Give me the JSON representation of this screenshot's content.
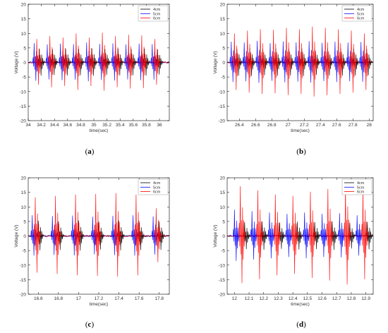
{
  "panels": [
    {
      "id": "a",
      "caption_open": "(",
      "caption_label": "a",
      "caption_close": ")",
      "chart_data": {
        "type": "line",
        "xlabel": "time(sec)",
        "ylabel": "Voltage (V)",
        "xlim": [
          34.0,
          36.15
        ],
        "ylim": [
          -20,
          20
        ],
        "xticks": [
          "34",
          "34.2",
          "34.4",
          "34.6",
          "34.8",
          "35",
          "35.2",
          "35.4",
          "35.6",
          "35.8",
          "36"
        ],
        "yticks": [
          "-20",
          "-15",
          "-10",
          "-5",
          "0",
          "5",
          "10",
          "15",
          "20"
        ],
        "grid": false,
        "legend_position": "top-right",
        "pulse_period": 0.2,
        "series": [
          {
            "name": "4cm",
            "color": "#000000",
            "pulses": [
              {
                "t": 34.17,
                "amp": 5.0
              },
              {
                "t": 34.37,
                "amp": 4.8
              },
              {
                "t": 34.57,
                "amp": 5.0
              },
              {
                "t": 34.77,
                "amp": 4.9
              },
              {
                "t": 34.97,
                "amp": 5.1
              },
              {
                "t": 35.17,
                "amp": 4.8
              },
              {
                "t": 35.37,
                "amp": 5.0
              },
              {
                "t": 35.57,
                "amp": 4.9
              },
              {
                "t": 35.77,
                "amp": 5.0
              },
              {
                "t": 35.97,
                "amp": 4.7
              }
            ]
          },
          {
            "name": "5cm",
            "color": "#0000ff",
            "pulses": [
              {
                "t": 34.09,
                "amp": 7.0
              },
              {
                "t": 34.29,
                "amp": 6.5
              },
              {
                "t": 34.49,
                "amp": 6.8
              },
              {
                "t": 34.69,
                "amp": 6.6
              },
              {
                "t": 34.89,
                "amp": 7.2
              },
              {
                "t": 35.09,
                "amp": 6.7
              },
              {
                "t": 35.29,
                "amp": 6.9
              },
              {
                "t": 35.49,
                "amp": 6.5
              },
              {
                "t": 35.69,
                "amp": 6.8
              },
              {
                "t": 35.89,
                "amp": 6.6
              }
            ]
          },
          {
            "name": "6cm",
            "color": "#ff0000",
            "pulses": [
              {
                "t": 34.13,
                "amp": 8.5
              },
              {
                "t": 34.33,
                "amp": 9.5
              },
              {
                "t": 34.53,
                "amp": 9.0
              },
              {
                "t": 34.73,
                "amp": 10.5
              },
              {
                "t": 34.93,
                "amp": 9.0
              },
              {
                "t": 35.13,
                "amp": 10.8
              },
              {
                "t": 35.33,
                "amp": 9.5
              },
              {
                "t": 35.53,
                "amp": 10.0
              },
              {
                "t": 35.73,
                "amp": 9.8
              },
              {
                "t": 35.93,
                "amp": 8.5
              }
            ]
          }
        ]
      }
    },
    {
      "id": "b",
      "caption_open": "(",
      "caption_label": "b",
      "caption_close": ")",
      "chart_data": {
        "type": "line",
        "xlabel": "time(sec)",
        "ylabel": "Voltage (V)",
        "xlim": [
          26.25,
          28.05
        ],
        "ylim": [
          -20,
          20
        ],
        "xticks": [
          "26.4",
          "26.6",
          "26.8",
          "27",
          "27.2",
          "27.4",
          "27.6",
          "27.8",
          "28"
        ],
        "yticks": [
          "-20",
          "-15",
          "-10",
          "-5",
          "0",
          "5",
          "10",
          "15",
          "20"
        ],
        "grid": false,
        "legend_position": "top-right",
        "pulse_period": 0.16,
        "series": [
          {
            "name": "4cm",
            "color": "#000000",
            "pulses": [
              {
                "t": 26.37,
                "amp": 5.0
              },
              {
                "t": 26.53,
                "amp": 5.2
              },
              {
                "t": 26.69,
                "amp": 4.9
              },
              {
                "t": 26.85,
                "amp": 5.1
              },
              {
                "t": 27.01,
                "amp": 5.0
              },
              {
                "t": 27.17,
                "amp": 5.2
              },
              {
                "t": 27.33,
                "amp": 4.8
              },
              {
                "t": 27.49,
                "amp": 5.0
              },
              {
                "t": 27.65,
                "amp": 5.1
              },
              {
                "t": 27.81,
                "amp": 5.0
              },
              {
                "t": 27.97,
                "amp": 4.9
              }
            ]
          },
          {
            "name": "5cm",
            "color": "#0000ff",
            "pulses": [
              {
                "t": 26.3,
                "amp": 7.5
              },
              {
                "t": 26.46,
                "amp": 7.2
              },
              {
                "t": 26.62,
                "amp": 7.8
              },
              {
                "t": 26.78,
                "amp": 7.0
              },
              {
                "t": 26.94,
                "amp": 7.6
              },
              {
                "t": 27.1,
                "amp": 7.3
              },
              {
                "t": 27.26,
                "amp": 7.7
              },
              {
                "t": 27.42,
                "amp": 7.1
              },
              {
                "t": 27.58,
                "amp": 7.5
              },
              {
                "t": 27.74,
                "amp": 7.2
              },
              {
                "t": 27.9,
                "amp": 7.4
              }
            ]
          },
          {
            "name": "6cm",
            "color": "#ff0000",
            "pulses": [
              {
                "t": 26.34,
                "amp": 10.5
              },
              {
                "t": 26.5,
                "amp": 11.5
              },
              {
                "t": 26.66,
                "amp": 12.0
              },
              {
                "t": 26.82,
                "amp": 11.8
              },
              {
                "t": 26.98,
                "amp": 12.5
              },
              {
                "t": 27.14,
                "amp": 12.0
              },
              {
                "t": 27.3,
                "amp": 13.0
              },
              {
                "t": 27.46,
                "amp": 12.5
              },
              {
                "t": 27.62,
                "amp": 12.0
              },
              {
                "t": 27.78,
                "amp": 11.5
              },
              {
                "t": 27.94,
                "amp": 10.5
              }
            ]
          }
        ]
      }
    },
    {
      "id": "c",
      "caption_open": "(",
      "caption_label": "c",
      "caption_close": ")",
      "chart_data": {
        "type": "line",
        "xlabel": "time(sec)",
        "ylabel": "Voltage (V)",
        "xlim": [
          16.5,
          17.9
        ],
        "ylim": [
          -20,
          20
        ],
        "xticks": [
          "16.6",
          "16.8",
          "17",
          "17.2",
          "17.4",
          "17.6",
          "17.8"
        ],
        "yticks": [
          "-20",
          "-15",
          "-10",
          "-5",
          "0",
          "5",
          "10",
          "15",
          "20"
        ],
        "grid": false,
        "legend_position": "top-right",
        "pulse_period": 0.2,
        "series": [
          {
            "name": "4cm",
            "color": "#000000",
            "pulses": [
              {
                "t": 16.6,
                "amp": 5.5
              },
              {
                "t": 16.8,
                "amp": 5.3
              },
              {
                "t": 17.0,
                "amp": 5.6
              },
              {
                "t": 17.2,
                "amp": 5.2
              },
              {
                "t": 17.4,
                "amp": 5.5
              },
              {
                "t": 17.6,
                "amp": 5.4
              },
              {
                "t": 17.8,
                "amp": 5.3
              }
            ]
          },
          {
            "name": "5cm",
            "color": "#0000ff",
            "pulses": [
              {
                "t": 16.54,
                "amp": 7.5
              },
              {
                "t": 16.74,
                "amp": 7.2
              },
              {
                "t": 16.94,
                "amp": 7.4
              },
              {
                "t": 17.14,
                "amp": 7.0
              },
              {
                "t": 17.34,
                "amp": 7.3
              },
              {
                "t": 17.54,
                "amp": 7.5
              },
              {
                "t": 17.74,
                "amp": 7.1
              }
            ]
          },
          {
            "name": "6cm",
            "color": "#ff0000",
            "pulses": [
              {
                "t": 16.57,
                "amp": 14.0
              },
              {
                "t": 16.77,
                "amp": 14.5
              },
              {
                "t": 16.97,
                "amp": 15.0
              },
              {
                "t": 17.17,
                "amp": 15.2
              },
              {
                "t": 17.37,
                "amp": 15.5
              },
              {
                "t": 17.57,
                "amp": 15.0
              },
              {
                "t": 17.77,
                "amp": 10.0
              }
            ]
          }
        ]
      }
    },
    {
      "id": "d",
      "caption_open": "(",
      "caption_label": "d",
      "caption_close": ")",
      "chart_data": {
        "type": "line",
        "xlabel": "time(sec)",
        "ylabel": "Voltage (V)",
        "xlim": [
          11.95,
          12.95
        ],
        "ylim": [
          -20,
          20
        ],
        "xticks": [
          "12",
          "12.1",
          "12.2",
          "12.3",
          "12.4",
          "12.5",
          "12.6",
          "12.7",
          "12.8",
          "12.9"
        ],
        "yticks": [
          "-20",
          "-15",
          "-10",
          "-5",
          "0",
          "5",
          "10",
          "15",
          "20"
        ],
        "grid": false,
        "legend_position": "top-right",
        "pulse_period": 0.12,
        "series": [
          {
            "name": "4cm",
            "color": "#000000",
            "pulses": [
              {
                "t": 12.07,
                "amp": 5.0
              },
              {
                "t": 12.19,
                "amp": 5.3
              },
              {
                "t": 12.31,
                "amp": 4.9
              },
              {
                "t": 12.43,
                "amp": 5.2
              },
              {
                "t": 12.55,
                "amp": 5.0
              },
              {
                "t": 12.67,
                "amp": 5.3
              },
              {
                "t": 12.79,
                "amp": 4.8
              },
              {
                "t": 12.91,
                "amp": 5.1
              }
            ]
          },
          {
            "name": "5cm",
            "color": "#0000ff",
            "pulses": [
              {
                "t": 12.0,
                "amp": 9.5
              },
              {
                "t": 12.12,
                "amp": 9.0
              },
              {
                "t": 12.24,
                "amp": 8.5
              },
              {
                "t": 12.36,
                "amp": 8.0
              },
              {
                "t": 12.48,
                "amp": 8.5
              },
              {
                "t": 12.6,
                "amp": 8.0
              },
              {
                "t": 12.72,
                "amp": 8.2
              },
              {
                "t": 12.84,
                "amp": 7.5
              }
            ]
          },
          {
            "name": "6cm",
            "color": "#ff0000",
            "pulses": [
              {
                "t": 12.04,
                "amp": 18.0
              },
              {
                "t": 12.16,
                "amp": 16.5
              },
              {
                "t": 12.28,
                "amp": 15.0
              },
              {
                "t": 12.4,
                "amp": 14.5
              },
              {
                "t": 12.52,
                "amp": 16.0
              },
              {
                "t": 12.64,
                "amp": 17.0
              },
              {
                "t": 12.76,
                "amp": 18.5
              },
              {
                "t": 12.88,
                "amp": 16.5
              }
            ]
          }
        ]
      }
    }
  ]
}
